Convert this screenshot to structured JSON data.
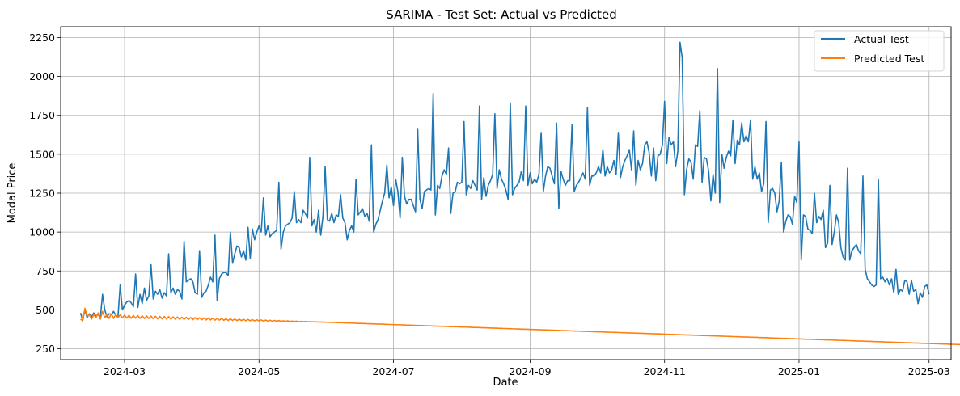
{
  "chart_data": {
    "type": "line",
    "title": "SARIMA - Test Set: Actual vs Predicted",
    "xlabel": "Date",
    "ylabel": "Modal Price",
    "grid": true,
    "legend_position": "top-right",
    "xlim": [
      "2024-02-01",
      "2025-03-11"
    ],
    "ylim": [
      180,
      2320
    ],
    "x_ticks": [
      "2024-03",
      "2024-05",
      "2024-07",
      "2024-09",
      "2024-11",
      "2025-01",
      "2025-03"
    ],
    "x_tick_dates": [
      "2024-03-01",
      "2024-05-01",
      "2024-07-01",
      "2024-09-01",
      "2024-11-01",
      "2025-01-01",
      "2025-03-01"
    ],
    "y_ticks": [
      250,
      500,
      750,
      1000,
      1250,
      1500,
      1750,
      2000,
      2250
    ],
    "series": [
      {
        "name": "Actual Test",
        "color": "#1f77b4",
        "start_date": "2024-02-10",
        "values": [
          480,
          435,
          500,
          450,
          475,
          455,
          480,
          460,
          470,
          450,
          600,
          500,
          455,
          475,
          470,
          490,
          465,
          455,
          660,
          500,
          530,
          550,
          560,
          545,
          520,
          730,
          515,
          600,
          540,
          640,
          560,
          590,
          790,
          570,
          620,
          600,
          630,
          575,
          610,
          590,
          860,
          610,
          640,
          600,
          630,
          620,
          570,
          940,
          680,
          690,
          700,
          680,
          610,
          600,
          880,
          580,
          610,
          620,
          660,
          710,
          680,
          980,
          560,
          700,
          730,
          740,
          740,
          720,
          1000,
          800,
          860,
          910,
          900,
          840,
          880,
          820,
          1030,
          830,
          1020,
          950,
          1000,
          1040,
          1000,
          1220,
          980,
          1040,
          970,
          990,
          1000,
          1010,
          1320,
          890,
          1000,
          1040,
          1050,
          1060,
          1090,
          1260,
          1060,
          1080,
          1060,
          1140,
          1120,
          1090,
          1480,
          1040,
          1080,
          1000,
          1140,
          980,
          1100,
          1420,
          1080,
          1070,
          1120,
          1060,
          1110,
          1100,
          1240,
          1090,
          1060,
          950,
          1010,
          1040,
          1000,
          1340,
          1110,
          1130,
          1150,
          1100,
          1120,
          1070,
          1560,
          1000,
          1050,
          1080,
          1140,
          1200,
          1250,
          1430,
          1220,
          1290,
          1170,
          1340,
          1260,
          1090,
          1480,
          1230,
          1180,
          1210,
          1210,
          1170,
          1130,
          1660,
          1210,
          1150,
          1260,
          1270,
          1280,
          1270,
          1890,
          1110,
          1300,
          1280,
          1360,
          1400,
          1370,
          1540,
          1120,
          1250,
          1260,
          1320,
          1310,
          1320,
          1710,
          1240,
          1300,
          1280,
          1330,
          1300,
          1270,
          1810,
          1210,
          1350,
          1230,
          1300,
          1330,
          1370,
          1760,
          1280,
          1400,
          1340,
          1310,
          1270,
          1210,
          1830,
          1240,
          1280,
          1300,
          1320,
          1390,
          1330,
          1810,
          1300,
          1380,
          1310,
          1340,
          1320,
          1370,
          1640,
          1260,
          1360,
          1420,
          1410,
          1360,
          1310,
          1700,
          1150,
          1390,
          1340,
          1300,
          1330,
          1330,
          1690,
          1260,
          1300,
          1320,
          1350,
          1380,
          1340,
          1800,
          1300,
          1360,
          1360,
          1380,
          1420,
          1380,
          1530,
          1360,
          1420,
          1380,
          1400,
          1460,
          1370,
          1640,
          1350,
          1420,
          1460,
          1490,
          1530,
          1400,
          1650,
          1300,
          1460,
          1400,
          1440,
          1560,
          1580,
          1510,
          1360,
          1540,
          1330,
          1490,
          1500,
          1560,
          1840,
          1440,
          1610,
          1560,
          1580,
          1420,
          1520,
          2220,
          2120,
          1240,
          1400,
          1470,
          1450,
          1340,
          1560,
          1550,
          1780,
          1320,
          1480,
          1470,
          1390,
          1200,
          1370,
          1250,
          2050,
          1190,
          1500,
          1410,
          1480,
          1520,
          1490,
          1720,
          1440,
          1590,
          1560,
          1700,
          1580,
          1620,
          1580,
          1720,
          1340,
          1420,
          1340,
          1380,
          1260,
          1310,
          1710,
          1060,
          1270,
          1280,
          1250,
          1130,
          1200,
          1450,
          1000,
          1070,
          1110,
          1100,
          1050,
          1230,
          1190,
          1580,
          820,
          1110,
          1100,
          1020,
          1010,
          990,
          1250,
          1060,
          1100,
          1080,
          1140,
          900,
          930,
          1300,
          920,
          1000,
          1110,
          1060,
          900,
          840,
          820,
          1410,
          820,
          880,
          900,
          920,
          880,
          860,
          1360,
          760,
          700,
          680,
          660,
          650,
          660,
          1340,
          700,
          710,
          680,
          700,
          660,
          700,
          610,
          760,
          600,
          630,
          620,
          690,
          680,
          600,
          690,
          620,
          630,
          540,
          610,
          580,
          650,
          660,
          600
        ]
      },
      {
        "name": "Predicted Test",
        "color": "#ff7f0e",
        "start_date": "2024-02-10",
        "values": [
          440,
          430,
          510,
          460,
          470,
          440,
          470,
          450,
          480,
          440,
          490,
          450,
          470,
          445,
          475,
          445,
          470,
          450,
          468,
          448,
          466,
          447,
          465,
          446,
          464,
          446,
          463,
          445,
          462,
          444,
          461,
          444,
          460,
          443,
          459,
          442,
          458,
          442,
          457,
          441,
          456,
          440,
          455,
          440,
          454,
          439,
          453,
          438,
          452,
          438,
          451,
          437,
          450,
          437,
          449,
          436,
          448,
          435,
          447,
          435,
          446,
          434,
          445,
          434,
          444,
          433,
          443,
          432,
          442,
          432,
          441,
          431,
          440,
          431,
          439,
          430,
          438,
          430,
          437,
          429,
          436,
          429,
          435,
          428,
          434,
          428,
          433,
          427,
          432,
          427,
          431,
          426,
          430,
          426,
          429,
          425,
          428,
          425,
          427,
          424,
          426,
          424,
          425,
          423,
          424,
          423,
          423,
          422,
          422,
          422,
          421,
          421,
          420,
          420,
          419,
          419,
          418,
          418,
          417,
          417,
          416,
          416,
          415,
          415,
          414,
          414,
          413,
          413,
          412,
          412,
          411,
          411,
          410,
          410,
          409,
          409,
          408,
          408,
          407,
          407,
          406,
          406,
          405,
          405,
          404,
          404,
          403,
          403,
          402,
          402,
          401,
          401,
          400,
          400,
          399,
          399,
          398,
          398,
          397,
          397,
          396,
          396,
          395,
          395,
          394,
          394,
          393,
          393,
          392,
          392,
          391,
          391,
          390,
          390,
          389,
          389,
          388,
          388,
          387,
          387,
          386,
          386,
          385,
          385,
          384,
          384,
          383,
          383,
          382,
          382,
          381,
          381,
          380,
          380,
          379,
          379,
          378,
          378,
          377,
          377,
          376,
          376,
          375,
          375,
          374,
          374,
          373,
          373,
          372,
          372,
          371,
          371,
          370,
          370,
          369,
          369,
          368,
          368,
          367,
          367,
          366,
          366,
          365,
          365,
          364,
          364,
          363,
          363,
          362,
          362,
          361,
          361,
          360,
          360,
          359,
          359,
          358,
          358,
          357,
          357,
          356,
          356,
          355,
          355,
          354,
          354,
          353,
          353,
          352,
          352,
          351,
          351,
          350,
          350,
          349,
          349,
          348,
          348,
          347,
          347,
          346,
          346,
          345,
          345,
          344,
          344,
          343,
          343,
          342,
          342,
          341,
          341,
          340,
          340,
          339,
          339,
          338,
          338,
          337,
          337,
          336,
          336,
          335,
          335,
          334,
          334,
          333,
          333,
          332,
          332,
          331,
          331,
          330,
          330,
          329,
          329,
          328,
          328,
          327,
          327,
          326,
          326,
          325,
          325,
          324,
          324,
          323,
          323,
          322,
          322,
          321,
          321,
          320,
          320,
          319,
          319,
          318,
          318,
          317,
          317,
          316,
          316,
          315,
          315,
          314,
          314,
          313,
          313,
          312,
          312,
          311,
          311,
          310,
          310,
          309,
          309,
          308,
          308,
          307,
          307,
          306,
          306,
          305,
          305,
          304,
          304,
          303,
          303,
          302,
          302,
          301,
          301,
          300,
          300,
          299,
          299,
          298,
          298,
          297,
          297,
          296,
          296,
          295,
          295,
          294,
          294,
          293,
          293,
          292,
          292,
          291,
          291,
          290,
          290,
          289,
          289,
          288,
          288,
          287,
          287,
          286,
          286,
          285,
          285,
          284,
          284,
          283,
          283,
          282,
          282,
          281,
          281,
          280,
          280,
          279,
          279,
          278,
          278,
          277,
          277,
          276,
          276,
          275,
          275,
          274,
          274,
          273,
          273,
          272,
          272,
          271,
          271,
          270,
          270
        ]
      }
    ]
  }
}
